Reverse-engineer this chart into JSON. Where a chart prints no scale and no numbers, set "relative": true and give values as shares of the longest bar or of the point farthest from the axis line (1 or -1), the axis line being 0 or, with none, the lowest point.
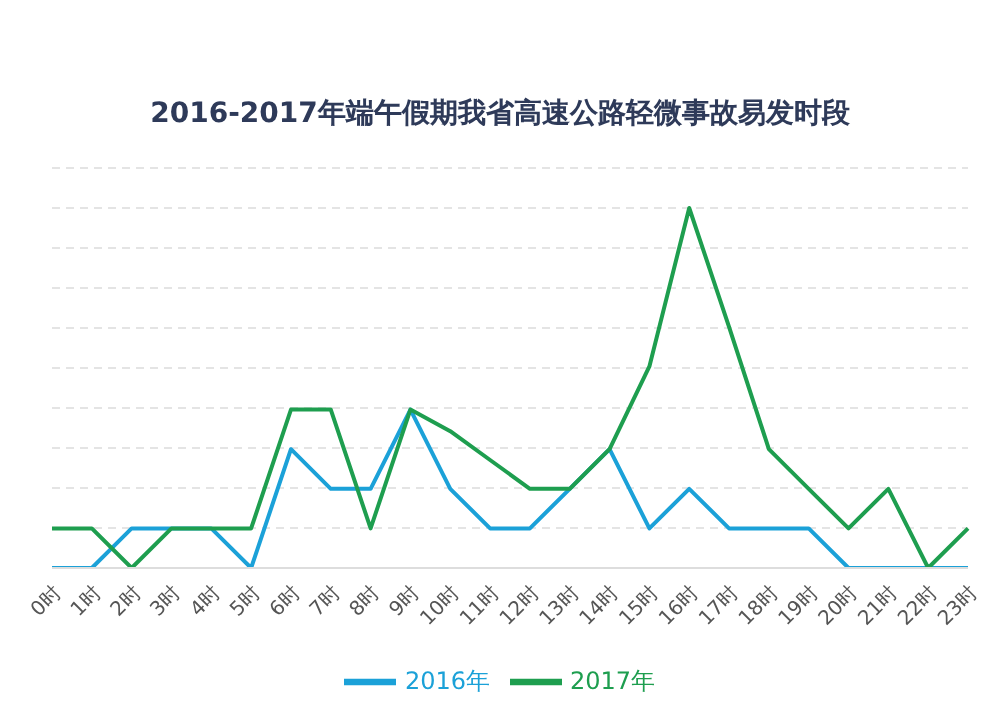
{
  "chart_data": {
    "type": "line",
    "title": "2016-2017年端午假期我省高速公路轻微事故易发时段",
    "relative": true,
    "categories": [
      "0时",
      "1时",
      "2时",
      "3时",
      "4时",
      "5时",
      "6时",
      "7时",
      "8时",
      "9时",
      "10时",
      "11时",
      "12时",
      "13时",
      "14时",
      "15时",
      "16时",
      "17时",
      "18时",
      "19时",
      "20时",
      "21时",
      "22时",
      "23时"
    ],
    "series": [
      {
        "name": "2016年",
        "color": "#1ba1d8",
        "values": [
          0,
          0,
          0.11,
          0.11,
          0.11,
          0,
          0.33,
          0.22,
          0.22,
          0.44,
          0.22,
          0.11,
          0.11,
          0.22,
          0.33,
          0.11,
          0.22,
          0.11,
          0.11,
          0.11,
          0,
          0,
          0,
          0
        ]
      },
      {
        "name": "2017年",
        "color": "#1e9e4f",
        "values": [
          0.11,
          0.11,
          0,
          0.11,
          0.11,
          0.11,
          0.44,
          0.44,
          0.11,
          0.44,
          0.38,
          0.3,
          0.22,
          0.22,
          0.33,
          0.56,
          1,
          0.67,
          0.33,
          0.22,
          0.11,
          0.22,
          0,
          0.11
        ]
      }
    ],
    "grid": "y",
    "legend": "bottom",
    "marker": "none",
    "line_style": "solid"
  }
}
